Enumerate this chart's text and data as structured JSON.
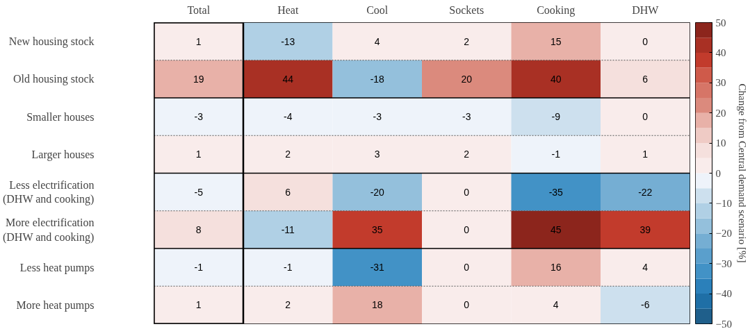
{
  "chart_data": {
    "type": "heatmap",
    "categories": [
      "Total",
      "Heat",
      "Cool",
      "Sockets",
      "Cooking",
      "DHW"
    ],
    "y_categories": [
      "New housing stock",
      "Old housing stock",
      "Smaller houses",
      "Larger houses",
      "Less electrification (DHW and cooking)",
      "More electrification (DHW and cooking)",
      "Less heat pumps",
      "More heat pumps"
    ],
    "cells": [
      [
        1,
        -13,
        4,
        2,
        15,
        0
      ],
      [
        19,
        44,
        -18,
        20,
        40,
        6
      ],
      [
        -3,
        -4,
        -3,
        -3,
        -9,
        0
      ],
      [
        1,
        2,
        3,
        2,
        -1,
        1
      ],
      [
        -5,
        6,
        -20,
        0,
        -35,
        -22
      ],
      [
        8,
        -11,
        35,
        0,
        45,
        39
      ],
      [
        -1,
        -1,
        -31,
        0,
        16,
        4
      ],
      [
        1,
        2,
        18,
        0,
        4,
        -6
      ]
    ],
    "data_labels": true,
    "clabel": "Change from Central demand scenario [%]",
    "clim": [
      -50,
      50
    ],
    "cticks": [
      -50,
      -40,
      -30,
      -20,
      -10,
      0,
      10,
      20,
      30,
      40,
      50
    ]
  }
}
